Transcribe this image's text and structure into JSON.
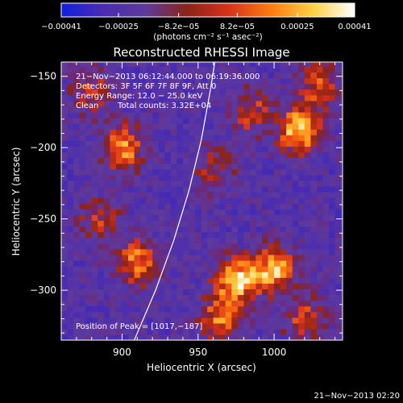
{
  "chart_data": {
    "type": "heatmap",
    "title": "Reconstructed RHESSI Image",
    "xlabel": "Heliocentric X (arcsec)",
    "ylabel": "Heliocentric Y (arcsec)",
    "xlim": [
      860,
      1045
    ],
    "ylim": [
      -335,
      -140
    ],
    "x_ticks": [
      900,
      950,
      1000
    ],
    "x_tick_labels": [
      "900",
      "950",
      "1000"
    ],
    "y_ticks": [
      -150,
      -200,
      -250,
      -300
    ],
    "y_tick_labels": [
      "−150",
      "−200",
      "−250",
      "−300"
    ],
    "colorbar": {
      "range": [
        -0.00041,
        0.00041
      ],
      "tick_values": [
        -0.00041,
        -0.00025,
        -8.2e-05,
        8.2e-05,
        0.00025,
        0.00041
      ],
      "tick_labels": [
        "−0.00041",
        "−0.00025",
        "−8.2e−05",
        "8.2e−05",
        "0.00025",
        "0.00041"
      ],
      "unit_label": "(photons cm⁻² s⁻¹ asec⁻²)",
      "colors": [
        "#1020e0",
        "#4a2cb0",
        "#5e3a9c",
        "#8a2418",
        "#d8321a",
        "#ff7a10",
        "#ffd040",
        "#ffffff"
      ]
    },
    "annotations": {
      "time_range": "21−Nov−2013 06:12:44.000 to 06:19:36.000",
      "detectors": "Detectors: 3F 5F 6F 7F 8F 9F, Att 0",
      "energy": "Energy Range: 12.0 − 25.0 keV",
      "method": "Clean",
      "counts": "Total counts: 3.32E+04",
      "peak": "Position of Peak = [1017,−187]"
    },
    "limb_curve": [
      [
        908,
        -335
      ],
      [
        922,
        -300
      ],
      [
        934,
        -265
      ],
      [
        944,
        -230
      ],
      [
        952,
        -195
      ],
      [
        958,
        -160
      ],
      [
        961,
        -140
      ]
    ],
    "hot_spots": [
      {
        "x": 1017,
        "y": -187,
        "intensity": 1.0
      },
      {
        "x": 975,
        "y": -293,
        "intensity": 0.95
      },
      {
        "x": 1000,
        "y": -285,
        "intensity": 0.9
      },
      {
        "x": 900,
        "y": -200,
        "intensity": 0.82
      },
      {
        "x": 910,
        "y": -280,
        "intensity": 0.78
      },
      {
        "x": 1030,
        "y": -155,
        "intensity": 0.6
      },
      {
        "x": 985,
        "y": -175,
        "intensity": 0.55
      },
      {
        "x": 965,
        "y": -320,
        "intensity": 0.7
      },
      {
        "x": 1020,
        "y": -320,
        "intensity": 0.55
      },
      {
        "x": 880,
        "y": -160,
        "intensity": 0.5
      },
      {
        "x": 885,
        "y": -250,
        "intensity": 0.45
      },
      {
        "x": 960,
        "y": -215,
        "intensity": 0.4
      }
    ]
  },
  "footer": {
    "timestamp": "21−Nov−2013 02:20"
  }
}
